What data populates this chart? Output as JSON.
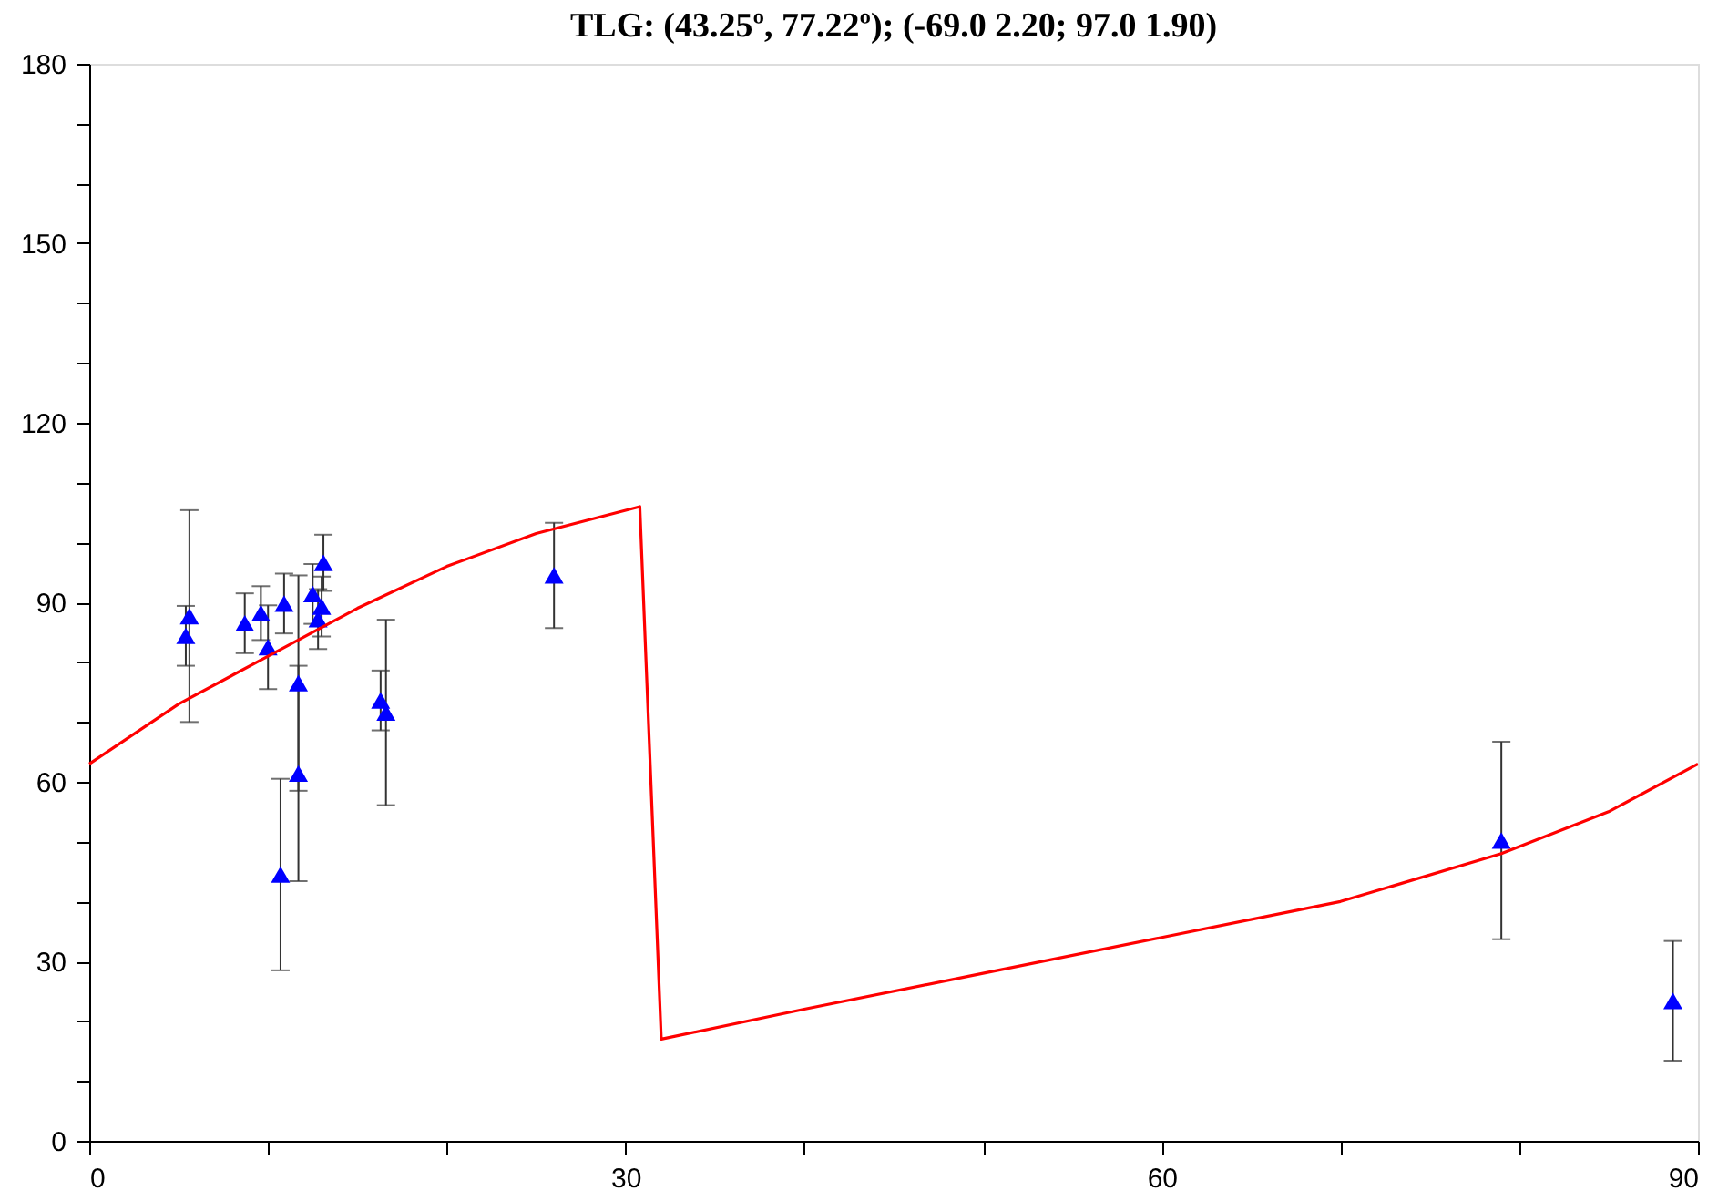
{
  "chart_data": {
    "type": "scatter",
    "title": "TLG: (43.25º, 77.22º);   (-69.0 2.20; 97.0 1.90)",
    "xlim": [
      0,
      90
    ],
    "ylim": [
      0,
      180
    ],
    "xticks": [
      0,
      {
        "value": 10,
        "label": null
      },
      {
        "value": 20,
        "label": null
      },
      30,
      {
        "value": 40,
        "label": null
      },
      {
        "value": 50,
        "label": null
      },
      60,
      {
        "value": 70,
        "label": null
      },
      {
        "value": 80,
        "label": null
      },
      90
    ],
    "yticks": [
      0,
      {
        "value": 10,
        "label": null
      },
      {
        "value": 20,
        "label": null
      },
      30,
      {
        "value": 40,
        "label": null
      },
      {
        "value": 50,
        "label": null
      },
      60,
      {
        "value": 70,
        "label": null
      },
      {
        "value": 80,
        "label": null
      },
      90,
      {
        "value": 100,
        "label": null
      },
      {
        "value": 110,
        "label": null
      },
      120,
      {
        "value": 130,
        "label": null
      },
      {
        "value": 140,
        "label": null
      },
      150,
      {
        "value": 160,
        "label": null
      },
      {
        "value": 170,
        "label": null
      },
      180
    ],
    "grid": false,
    "series": [
      {
        "color": "#0000ff",
        "marker": "triangle",
        "x": [
          5.6,
          5.4,
          8.7,
          9.6,
          10.0,
          10.9,
          11.7,
          11.7,
          10.7,
          12.5,
          13.1,
          13.0,
          12.8,
          16.3,
          16.6,
          26.0,
          79.0,
          88.6
        ],
        "values": [
          87.7,
          84.4,
          86.5,
          88.2,
          82.5,
          89.8,
          76.5,
          61.4,
          44.5,
          91.4,
          96.6,
          89.3,
          87.2,
          73.6,
          71.6,
          94.5,
          50.2,
          23.4
        ],
        "errors": [
          17.7,
          5,
          5,
          4.5,
          7,
          5,
          18,
          18,
          16,
          5,
          4.7,
          5,
          5,
          5,
          15.5,
          8.8,
          16.5,
          10
        ]
      },
      {
        "type": "line",
        "color": "#ff0000",
        "marker": "none",
        "line_style": "solid",
        "x": [
          0,
          5,
          10,
          15,
          20,
          25,
          30.8,
          32,
          40,
          50,
          60,
          70,
          79,
          85,
          90
        ],
        "values": [
          63,
          73,
          81,
          89,
          96,
          101.5,
          106,
          17,
          22,
          28,
          34,
          40,
          48,
          55,
          63
        ]
      }
    ]
  }
}
